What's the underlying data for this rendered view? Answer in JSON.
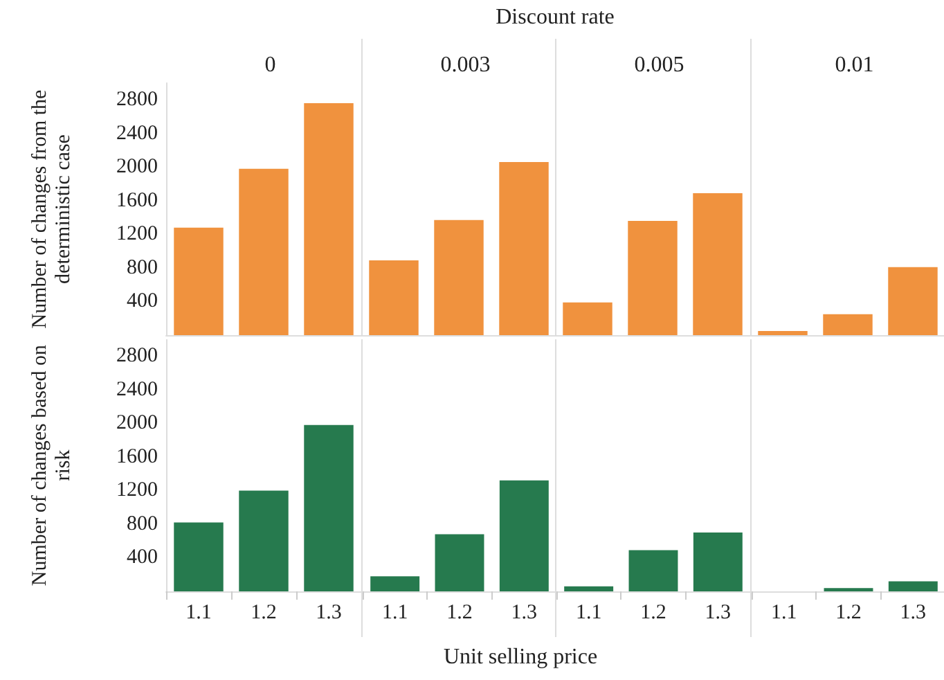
{
  "chart_data": [
    {
      "type": "bar",
      "title": "0",
      "annotations": [
        "Discount rate"
      ],
      "ylabel": "Number of changes from the deterministic case",
      "categories": [
        "1.1",
        "1.2",
        "1.3"
      ],
      "values": [
        1280,
        1980,
        2760
      ],
      "color": "#f0923e",
      "ylim": [
        0,
        3000
      ],
      "yticks": [
        400,
        800,
        1200,
        1600,
        2000,
        2400,
        2800
      ],
      "tick_labels": "y"
    },
    {
      "type": "bar",
      "title": "0.003",
      "categories": [
        "1.1",
        "1.2",
        "1.3"
      ],
      "values": [
        890,
        1370,
        2060
      ],
      "color": "#f0923e",
      "ylim": [
        0,
        3000
      ],
      "yticks": [
        400,
        800,
        1200,
        1600,
        2000,
        2400,
        2800
      ],
      "tick_labels": false
    },
    {
      "type": "bar",
      "title": "0.005",
      "categories": [
        "1.1",
        "1.2",
        "1.3"
      ],
      "values": [
        390,
        1360,
        1690
      ],
      "color": "#f0923e",
      "ylim": [
        0,
        3000
      ],
      "yticks": [
        400,
        800,
        1200,
        1600,
        2000,
        2400,
        2800
      ],
      "tick_labels": false
    },
    {
      "type": "bar",
      "title": "0.01",
      "categories": [
        "1.1",
        "1.2",
        "1.3"
      ],
      "values": [
        50,
        250,
        810
      ],
      "color": "#f0923e",
      "ylim": [
        0,
        3000
      ],
      "yticks": [
        400,
        800,
        1200,
        1600,
        2000,
        2400,
        2800
      ],
      "tick_labels": false
    },
    {
      "type": "bar",
      "ylabel": "Number of changes based on risk",
      "xlabel": "Unit selling price",
      "categories": [
        "1.1",
        "1.2",
        "1.3"
      ],
      "values": [
        820,
        1200,
        1980
      ],
      "color": "#267a4e",
      "ylim": [
        0,
        3000
      ],
      "yticks": [
        400,
        800,
        1200,
        1600,
        2000,
        2400,
        2800
      ]
    },
    {
      "type": "bar",
      "categories": [
        "1.1",
        "1.2",
        "1.3"
      ],
      "values": [
        180,
        680,
        1320
      ],
      "color": "#267a4e",
      "ylim": [
        0,
        3000
      ],
      "yticks": [
        400,
        800,
        1200,
        1600,
        2000,
        2400,
        2800
      ],
      "tick_labels": "x"
    },
    {
      "type": "bar",
      "categories": [
        "1.1",
        "1.2",
        "1.3"
      ],
      "values": [
        60,
        490,
        700
      ],
      "color": "#267a4e",
      "ylim": [
        0,
        3000
      ],
      "yticks": [
        400,
        800,
        1200,
        1600,
        2000,
        2400,
        2800
      ],
      "tick_labels": "x"
    },
    {
      "type": "bar",
      "categories": [
        "1.1",
        "1.2",
        "1.3"
      ],
      "values": [
        0,
        40,
        120
      ],
      "color": "#267a4e",
      "ylim": [
        0,
        3000
      ],
      "yticks": [
        400,
        800,
        1200,
        1600,
        2000,
        2400,
        2800
      ],
      "tick_labels": "x"
    }
  ]
}
